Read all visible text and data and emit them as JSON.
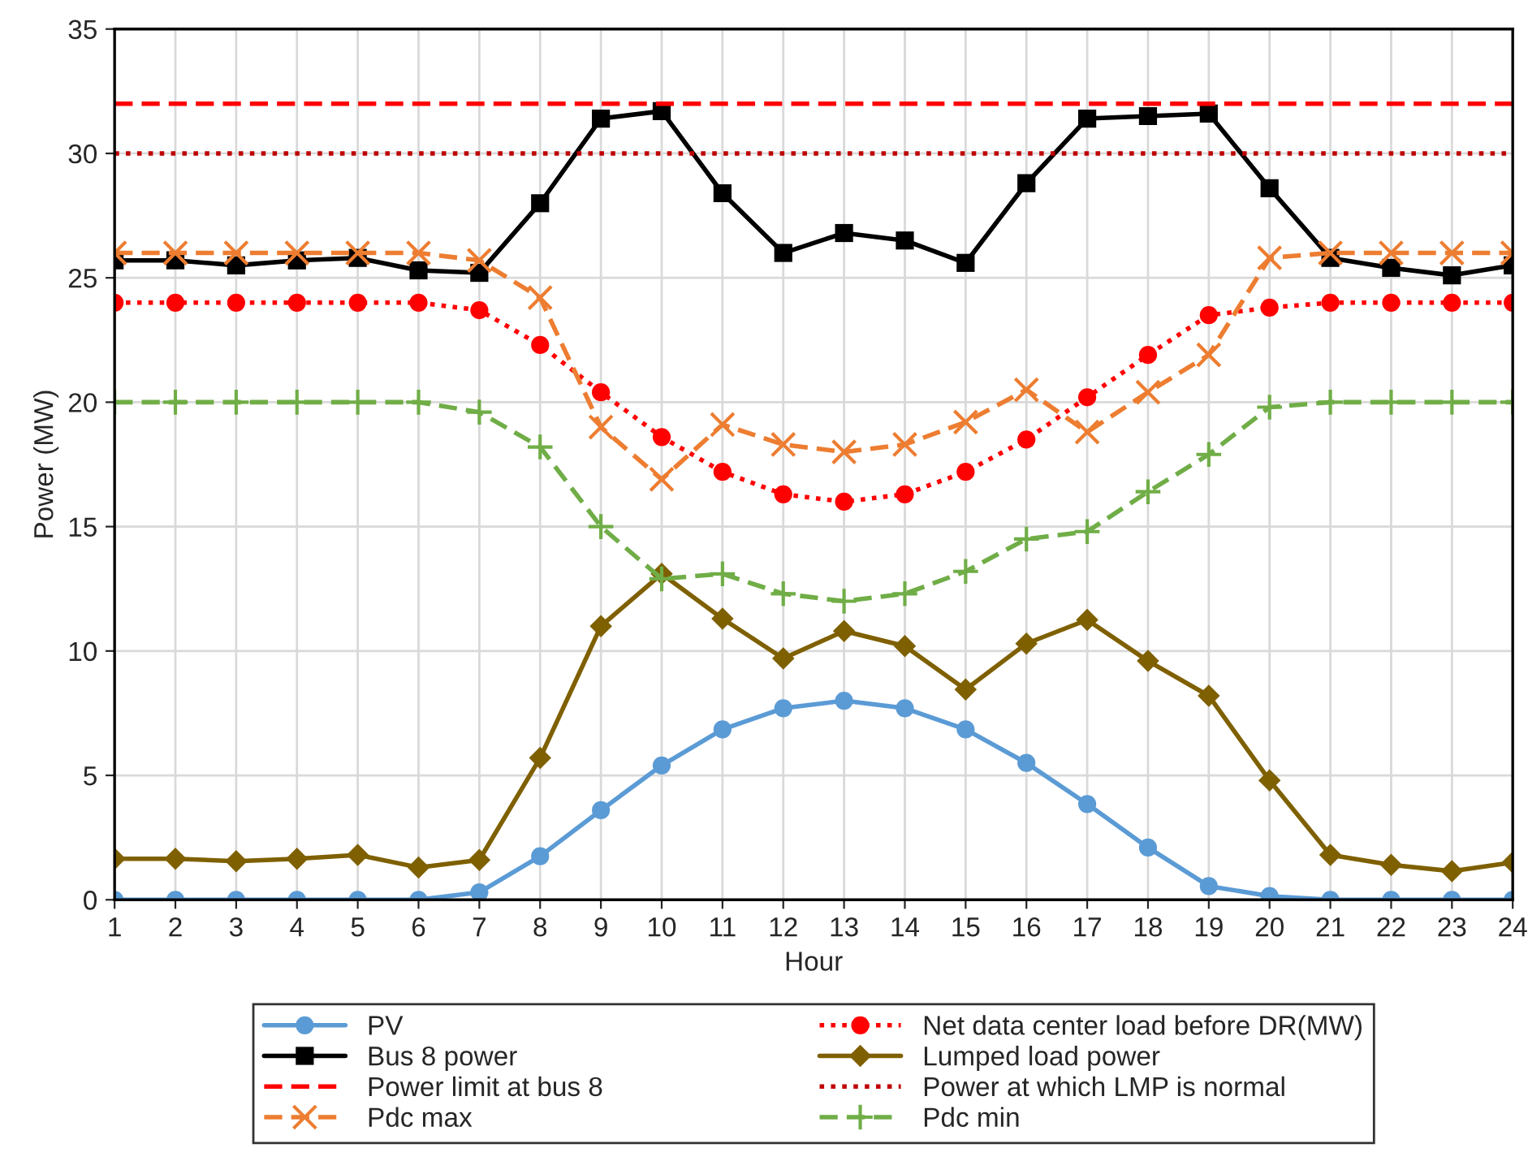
{
  "chart_data": {
    "type": "line",
    "xlabel": "Hour",
    "ylabel": "Power (MW)",
    "categories": [
      "1",
      "2",
      "3",
      "4",
      "5",
      "6",
      "7",
      "8",
      "9",
      "10",
      "11",
      "12",
      "13",
      "14",
      "15",
      "16",
      "17",
      "18",
      "19",
      "20",
      "21",
      "22",
      "23",
      "24"
    ],
    "ylim": [
      0,
      35
    ],
    "yticks": [
      0,
      5,
      10,
      15,
      20,
      25,
      30,
      35
    ],
    "grid": true,
    "legend": "bottom",
    "series": [
      {
        "name": "PV",
        "color": "#5b9bd5",
        "marker": "circle",
        "line_style": "solid",
        "values": [
          0,
          0,
          0,
          0,
          0,
          0,
          0.3,
          1.75,
          3.6,
          5.4,
          6.85,
          7.7,
          8.0,
          7.7,
          6.85,
          5.5,
          3.85,
          2.1,
          0.55,
          0.15,
          0,
          0,
          0,
          0
        ]
      },
      {
        "name": "Net data center load before DR(MW)",
        "color": "#ff0000",
        "marker": "circle",
        "line_style": "dotted",
        "values": [
          24,
          24,
          24,
          24,
          24,
          24,
          23.7,
          22.3,
          20.4,
          18.6,
          17.2,
          16.3,
          16.0,
          16.3,
          17.2,
          18.5,
          20.2,
          21.9,
          23.5,
          23.8,
          24,
          24,
          24,
          24
        ]
      },
      {
        "name": "Bus 8 power",
        "color": "#000000",
        "marker": "square",
        "line_style": "solid",
        "values": [
          25.7,
          25.7,
          25.5,
          25.7,
          25.8,
          25.3,
          25.2,
          28.0,
          31.4,
          31.7,
          28.4,
          26.0,
          26.8,
          26.5,
          25.6,
          28.8,
          31.4,
          31.5,
          31.6,
          28.6,
          25.8,
          25.4,
          25.1,
          25.5
        ]
      },
      {
        "name": "Lumped load power",
        "color": "#7f6000",
        "marker": "diamond",
        "line_style": "solid",
        "values": [
          1.65,
          1.65,
          1.55,
          1.65,
          1.8,
          1.3,
          1.6,
          5.7,
          11.0,
          13.1,
          11.3,
          9.7,
          10.8,
          10.2,
          8.45,
          10.3,
          11.25,
          9.6,
          8.2,
          4.8,
          1.8,
          1.4,
          1.15,
          1.5
        ]
      },
      {
        "name": "Power limit at bus 8",
        "color": "#ff0000",
        "marker": "none",
        "line_style": "dashed",
        "values": [
          32,
          32,
          32,
          32,
          32,
          32,
          32,
          32,
          32,
          32,
          32,
          32,
          32,
          32,
          32,
          32,
          32,
          32,
          32,
          32,
          32,
          32,
          32,
          32
        ]
      },
      {
        "name": "Power at which LMP is normal",
        "color": "#c00000",
        "marker": "none",
        "line_style": "dotted",
        "values": [
          30,
          30,
          30,
          30,
          30,
          30,
          30,
          30,
          30,
          30,
          30,
          30,
          30,
          30,
          30,
          30,
          30,
          30,
          30,
          30,
          30,
          30,
          30,
          30
        ]
      },
      {
        "name": "Pdc max",
        "color": "#ed7d31",
        "marker": "cross",
        "line_style": "dashed",
        "values": [
          26,
          26,
          26,
          26,
          26,
          26,
          25.7,
          24.2,
          19.0,
          16.9,
          19.1,
          18.3,
          18.0,
          18.3,
          19.2,
          20.5,
          18.8,
          20.4,
          21.9,
          25.8,
          26,
          26,
          26,
          26
        ]
      },
      {
        "name": "Pdc min",
        "color": "#70ad47",
        "marker": "plus",
        "line_style": "dashed",
        "values": [
          20,
          20,
          20,
          20,
          20,
          20,
          19.6,
          18.2,
          15.0,
          12.9,
          13.1,
          12.3,
          12.0,
          12.3,
          13.2,
          14.5,
          14.8,
          16.4,
          17.9,
          19.8,
          20,
          20,
          20,
          20
        ]
      }
    ]
  }
}
